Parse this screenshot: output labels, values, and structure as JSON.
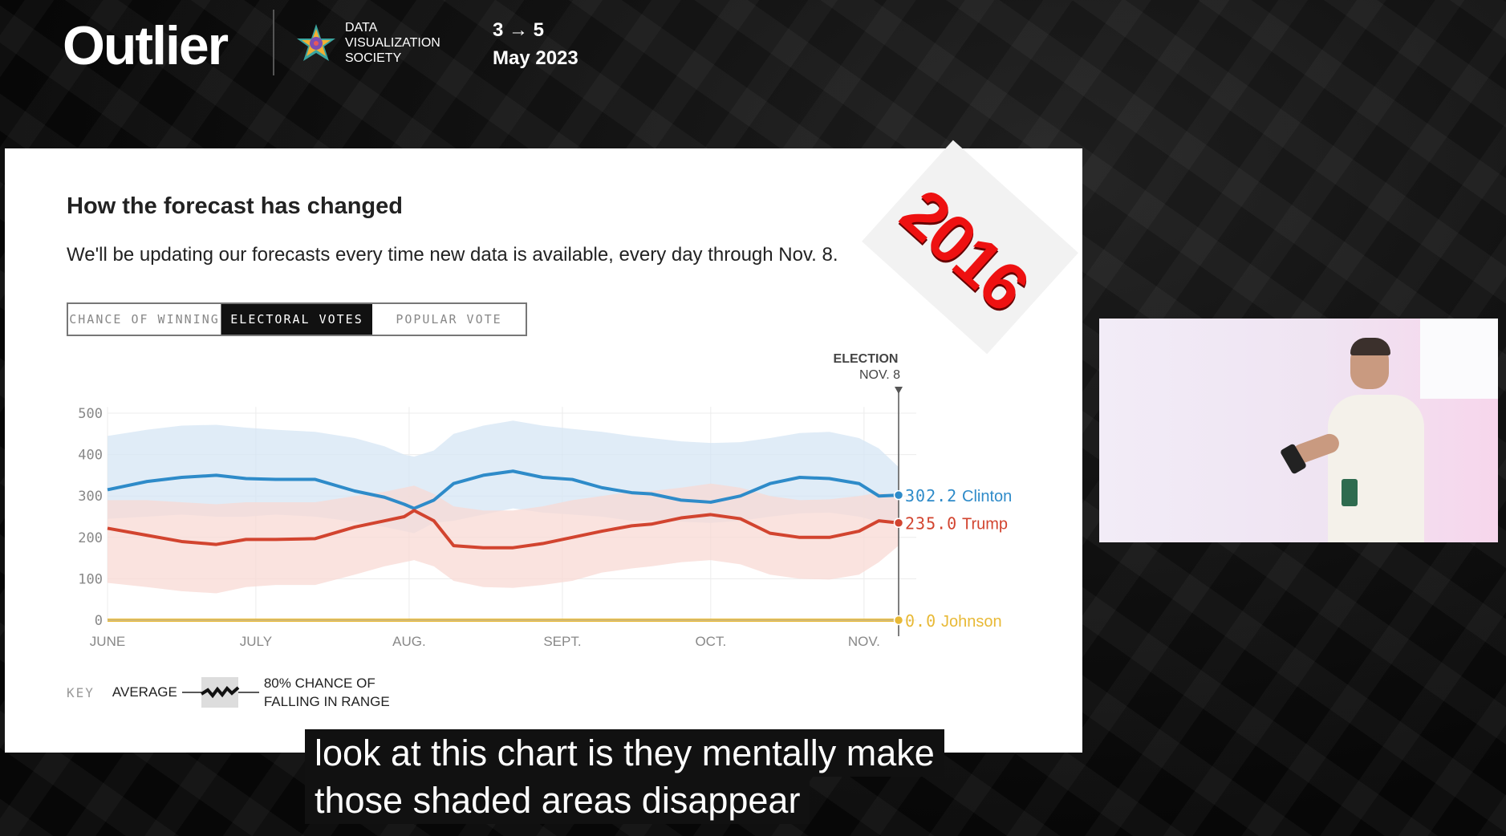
{
  "header": {
    "brand": "Outlier",
    "society_lines": [
      "DATA",
      "VISUALIZATION",
      "SOCIETY"
    ],
    "date_range": "3 → 5",
    "month_year": "May 2023"
  },
  "slide": {
    "title": "How the forecast has changed",
    "subtitle": "We'll be updating our forecasts every time new data is available, every day through Nov. 8.",
    "stamp": "2016",
    "tabs": [
      {
        "label": "CHANCE OF WINNING",
        "active": false
      },
      {
        "label": "ELECTORAL VOTES",
        "active": true
      },
      {
        "label": "POPULAR VOTE",
        "active": false
      }
    ],
    "election_marker": {
      "line1": "ELECTION",
      "line2": "NOV. 8"
    },
    "key": {
      "label": "KEY",
      "average": "AVERAGE",
      "range_line1": "80% CHANCE OF",
      "range_line2": "FALLING IN RANGE"
    }
  },
  "chart_data": {
    "type": "line",
    "y_ticks": [
      "500",
      "400",
      "300",
      "200",
      "100",
      "0"
    ],
    "x_ticks": [
      "JUNE",
      "JULY",
      "AUG.",
      "SEPT.",
      "OCT.",
      "NOV."
    ],
    "ylim": [
      0,
      538
    ],
    "grid": true,
    "x_day_ticks": [
      0,
      30,
      61,
      92,
      122,
      153
    ],
    "election_day": 160,
    "series": [
      {
        "name": "Clinton",
        "final_value": "302.2",
        "color": "#2e8bc9",
        "band_color": "#d5e6f4",
        "x": [
          0,
          8,
          15,
          22,
          28,
          34,
          42,
          50,
          56,
          60,
          62,
          66,
          70,
          76,
          82,
          88,
          94,
          100,
          106,
          110,
          116,
          122,
          128,
          134,
          140,
          146,
          152,
          156,
          160
        ],
        "values": [
          315,
          335,
          345,
          350,
          342,
          340,
          340,
          312,
          297,
          280,
          270,
          290,
          330,
          350,
          360,
          345,
          340,
          320,
          308,
          305,
          290,
          285,
          300,
          330,
          345,
          342,
          330,
          300,
          302
        ],
        "band_low": [
          245,
          250,
          255,
          250,
          250,
          255,
          250,
          238,
          225,
          215,
          210,
          235,
          240,
          255,
          270,
          260,
          255,
          250,
          240,
          240,
          238,
          235,
          240,
          250,
          258,
          260,
          250,
          238,
          240
        ],
        "band_high": [
          445,
          460,
          470,
          472,
          465,
          460,
          455,
          440,
          420,
          400,
          395,
          410,
          450,
          470,
          482,
          470,
          462,
          455,
          445,
          440,
          432,
          428,
          430,
          440,
          452,
          455,
          440,
          415,
          370
        ]
      },
      {
        "name": "Trump",
        "final_value": "235.0",
        "color": "#d2442f",
        "band_color": "#f8d9d4",
        "x": [
          0,
          8,
          15,
          22,
          28,
          34,
          42,
          50,
          56,
          60,
          62,
          66,
          70,
          76,
          82,
          88,
          94,
          100,
          106,
          110,
          116,
          122,
          128,
          134,
          140,
          146,
          152,
          156,
          160
        ],
        "values": [
          222,
          205,
          190,
          183,
          195,
          195,
          197,
          225,
          240,
          250,
          265,
          240,
          180,
          175,
          175,
          185,
          200,
          215,
          228,
          232,
          247,
          255,
          245,
          210,
          200,
          200,
          215,
          240,
          235
        ],
        "band_low": [
          90,
          80,
          70,
          65,
          80,
          85,
          85,
          110,
          130,
          140,
          145,
          130,
          95,
          80,
          78,
          85,
          95,
          115,
          125,
          130,
          140,
          145,
          135,
          110,
          100,
          98,
          110,
          140,
          180
        ],
        "band_high": [
          290,
          290,
          285,
          280,
          285,
          285,
          285,
          300,
          310,
          320,
          325,
          305,
          275,
          265,
          265,
          275,
          290,
          300,
          310,
          312,
          320,
          330,
          320,
          300,
          290,
          292,
          300,
          308,
          300
        ]
      },
      {
        "name": "Johnson",
        "final_value": "0.0",
        "color": "#e8b936",
        "x": [
          0,
          160
        ],
        "values": [
          0,
          0
        ]
      }
    ]
  },
  "caption": {
    "line1": "look at this chart is they mentally make",
    "line2": "those shaded areas disappear"
  }
}
